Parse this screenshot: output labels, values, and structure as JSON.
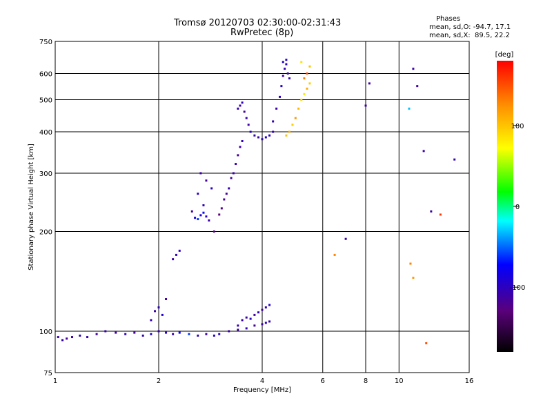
{
  "header": {
    "title_line1": "Tromsø 20120703 02:30:00-02:31:43",
    "title_line2": "RwPretec (8p)",
    "phases_title": "Phases",
    "phases_line1": "mean, sd,O: -94.7, 17.1",
    "phases_line2": "mean, sd,X:  89.5, 22.2"
  },
  "chart_data": {
    "type": "scatter",
    "title": "Tromsø 20120703 02:30:00-02:31:43",
    "subtitle": "RwPretec (8p)",
    "xlabel": "Frequency [MHz]",
    "ylabel": "Stationary phase Virtual Height [km]",
    "x_scale": "log",
    "y_scale": "log",
    "xlim": [
      1,
      16
    ],
    "ylim": [
      75,
      750
    ],
    "x_ticks": [
      1,
      2,
      4,
      6,
      8,
      10,
      16
    ],
    "y_ticks": [
      75,
      100,
      200,
      300,
      400,
      500,
      600,
      750
    ],
    "grid": true,
    "colorbar": {
      "label": "[deg]",
      "range": [
        -180,
        180
      ],
      "ticks": [
        100,
        0,
        -100
      ],
      "colors": [
        "#000000",
        "#5a007a",
        "#0000ff",
        "#00ffff",
        "#00ff00",
        "#ffff00",
        "#ff8c00",
        "#ff0000"
      ]
    },
    "series": [
      {
        "x": [
          1.02,
          1.05,
          1.08,
          1.12,
          1.18,
          1.24,
          1.32,
          1.4,
          1.5,
          1.6,
          1.7,
          1.8,
          1.9,
          2.0,
          2.1,
          2.2,
          2.3,
          2.45,
          2.6,
          2.75,
          2.9,
          3.0,
          3.2,
          3.4,
          3.6,
          3.8,
          4.0,
          4.1,
          4.2
        ],
        "y": [
          96,
          94,
          95,
          96,
          97,
          96,
          98,
          100,
          99,
          98,
          99,
          97,
          98,
          100,
          99,
          98,
          99,
          98,
          97,
          98,
          97,
          98,
          100,
          101,
          102,
          104,
          105,
          106,
          107
        ],
        "phase": [
          -110,
          -105,
          -115,
          -110,
          -100,
          -108,
          -112,
          -105,
          -110,
          -100,
          -115,
          -105,
          -95,
          -110,
          -100,
          -108,
          -80,
          -60,
          -105,
          -110,
          -95,
          -100,
          -108,
          -112,
          -105,
          -115,
          -110,
          -100,
          -105
        ]
      },
      {
        "x": [
          1.9,
          1.95,
          2.0,
          2.05,
          2.1,
          3.4,
          3.5,
          3.6,
          3.7,
          3.8,
          3.9,
          4.0,
          4.1,
          4.2
        ],
        "y": [
          108,
          115,
          118,
          112,
          125,
          104,
          108,
          110,
          109,
          112,
          114,
          116,
          118,
          120
        ],
        "phase": [
          -105,
          -110,
          -100,
          -95,
          -112,
          -105,
          -108,
          -110,
          -100,
          -115,
          -105,
          -110,
          -100,
          -95
        ]
      },
      {
        "x": [
          2.2,
          2.25,
          2.3
        ],
        "y": [
          165,
          170,
          175
        ],
        "phase": [
          -110,
          -105,
          -100
        ]
      },
      {
        "x": [
          2.5,
          2.55,
          2.6,
          2.65,
          2.7,
          2.75,
          2.8,
          2.7,
          2.6,
          2.65,
          2.75,
          2.85
        ],
        "y": [
          230,
          220,
          218,
          224,
          228,
          222,
          216,
          240,
          260,
          300,
          285,
          270
        ],
        "phase": [
          -110,
          -80,
          -60,
          -90,
          -70,
          -100,
          -110,
          -105,
          -100,
          -110,
          -115,
          -105
        ]
      },
      {
        "x": [
          2.9,
          3.0,
          3.05,
          3.1,
          3.15,
          3.2,
          3.25,
          3.3,
          3.35,
          3.4,
          3.45,
          3.5
        ],
        "y": [
          200,
          225,
          235,
          250,
          260,
          270,
          290,
          300,
          320,
          340,
          360,
          375
        ],
        "phase": [
          -125,
          -130,
          -125,
          -120,
          -115,
          -110,
          -115,
          -110,
          -105,
          -115,
          -110,
          -105
        ]
      },
      {
        "x": [
          3.4,
          3.45,
          3.5,
          3.55,
          3.6,
          3.65,
          3.7,
          3.8,
          3.9,
          4.0,
          4.1,
          4.2,
          4.3
        ],
        "y": [
          470,
          480,
          490,
          460,
          440,
          420,
          400,
          390,
          385,
          380,
          385,
          390,
          400
        ],
        "phase": [
          -105,
          -110,
          -100,
          -115,
          -105,
          -110,
          -100,
          -105,
          -110,
          -100,
          -90,
          -95,
          -105
        ]
      },
      {
        "x": [
          4.3,
          4.4,
          4.5,
          4.55,
          4.6,
          4.65,
          4.7,
          4.75,
          4.8,
          4.6,
          4.7
        ],
        "y": [
          430,
          470,
          510,
          550,
          590,
          620,
          640,
          600,
          580,
          650,
          660
        ],
        "phase": [
          -105,
          -110,
          -100,
          -95,
          -110,
          -105,
          -100,
          -110,
          -105,
          -95,
          -100
        ]
      },
      {
        "x": [
          4.7,
          4.8,
          4.9,
          5.0,
          5.1,
          5.2,
          5.3,
          5.4,
          5.5,
          5.3,
          5.4,
          5.5,
          5.2
        ],
        "y": [
          390,
          400,
          420,
          440,
          470,
          500,
          520,
          540,
          560,
          580,
          600,
          630,
          650
        ],
        "phase": [
          100,
          110,
          95,
          120,
          105,
          90,
          80,
          110,
          95,
          130,
          150,
          100,
          85
        ]
      },
      {
        "x": [
          6.5,
          7.0,
          8.0,
          8.2,
          10.7,
          11.0,
          11.3,
          11.8,
          12.4,
          13.2,
          14.5
        ],
        "y": [
          170,
          190,
          480,
          560,
          470,
          620,
          550,
          350,
          230,
          225,
          330
        ],
        "phase": [
          130,
          -110,
          -110,
          -110,
          -30,
          -110,
          -110,
          -110,
          -110,
          160,
          -110
        ]
      },
      {
        "x": [
          10.8,
          11.0,
          12.0
        ],
        "y": [
          160,
          145,
          92
        ],
        "phase": [
          130,
          120,
          150
        ]
      }
    ]
  }
}
